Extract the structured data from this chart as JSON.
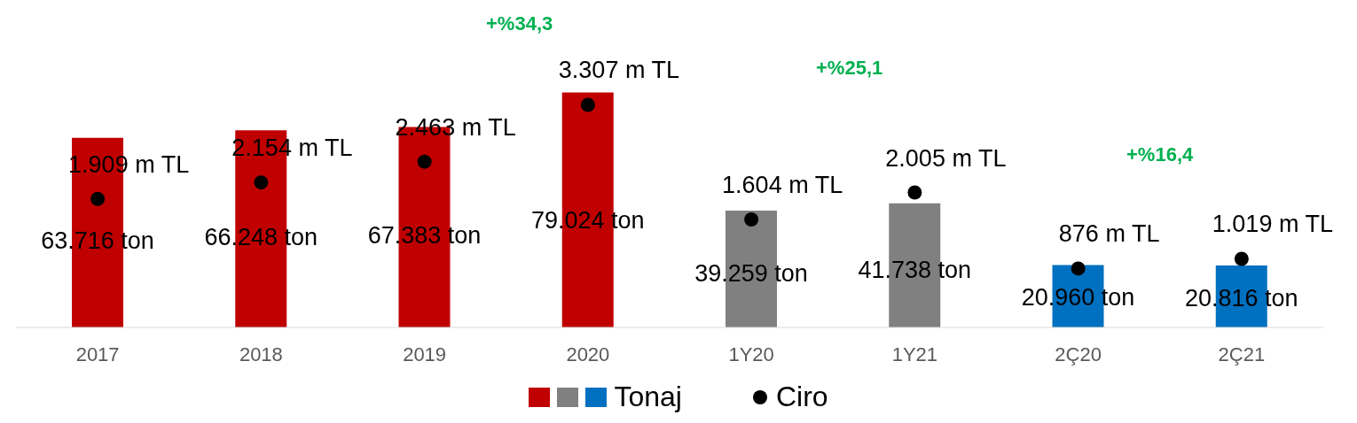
{
  "chart_data": {
    "type": "bar",
    "categories": [
      "2017",
      "2018",
      "2019",
      "2020",
      "1Y20",
      "1Y21",
      "2Ç20",
      "2Ç21"
    ],
    "series": [
      {
        "name": "Tonaj",
        "colors": [
          "#c00000",
          "#c00000",
          "#c00000",
          "#c00000",
          "#808080",
          "#808080",
          "#0070c0",
          "#0070c0"
        ],
        "values": [
          63716,
          66248,
          67383,
          79024,
          39259,
          41738,
          20960,
          20816
        ],
        "value_labels": [
          "63.716 ton",
          "66.248 ton",
          "67.383 ton",
          "79.024 ton",
          "39.259 ton",
          "41.738 ton",
          "20.960 ton",
          "20.816 ton"
        ]
      },
      {
        "name": "Ciro",
        "type": "scatter",
        "axis": "y2",
        "color": "#000000",
        "values": [
          1909,
          2154,
          2463,
          3307,
          1604,
          2005,
          876,
          1019
        ],
        "value_labels": [
          "1.909 m TL",
          "2.154 m TL",
          "2.463 m TL",
          "3.307 m TL",
          "1.604 m TL",
          "2.005 m TL",
          "876 m TL",
          "1.019 m TL"
        ]
      }
    ],
    "annotations": [
      "+%34,3",
      "+%25,1",
      "+%16,4"
    ],
    "marker": "circle",
    "legend": "bottom",
    "grid": false
  }
}
